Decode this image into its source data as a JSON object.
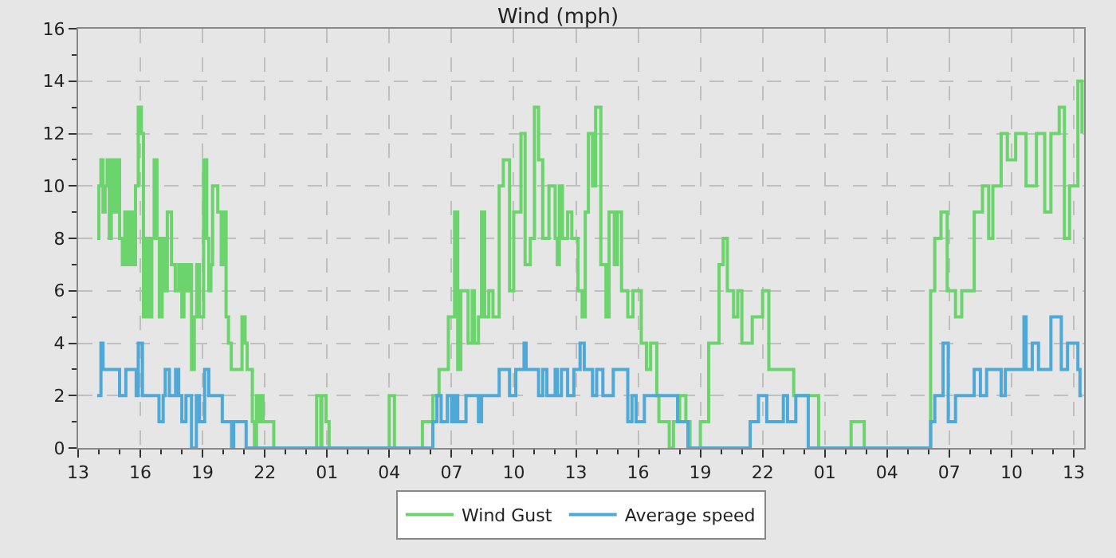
{
  "chart_data": {
    "type": "step",
    "title": "Wind (mph)",
    "xlim": [
      "--01-01T13:00",
      "--01-03T13:30"
    ],
    "xticks": [
      {
        "value": "--01-01T13:00",
        "label": "13"
      },
      {
        "value": "--01-01T14:00",
        "label": null
      },
      {
        "value": "--01-01T15:00",
        "label": null
      },
      {
        "value": "--01-01T16:00",
        "label": "16"
      },
      {
        "value": "--01-01T17:00",
        "label": null
      },
      {
        "value": "--01-01T18:00",
        "label": null
      },
      {
        "value": "--01-01T19:00",
        "label": "19"
      },
      {
        "value": "--01-01T20:00",
        "label": null
      },
      {
        "value": "--01-01T21:00",
        "label": null
      },
      {
        "value": "--01-01T22:00",
        "label": "22"
      },
      {
        "value": "--01-01T23:00",
        "label": null
      },
      {
        "value": "--01-02T00:00",
        "label": null
      },
      {
        "value": "--01-02T01:00",
        "label": "01"
      },
      {
        "value": "--01-02T02:00",
        "label": null
      },
      {
        "value": "--01-02T03:00",
        "label": null
      },
      {
        "value": "--01-02T04:00",
        "label": "04"
      },
      {
        "value": "--01-02T05:00",
        "label": null
      },
      {
        "value": "--01-02T06:00",
        "label": null
      },
      {
        "value": "--01-02T07:00",
        "label": "07"
      },
      {
        "value": "--01-02T08:00",
        "label": null
      },
      {
        "value": "--01-02T09:00",
        "label": null
      },
      {
        "value": "--01-02T10:00",
        "label": "10"
      },
      {
        "value": "--01-02T11:00",
        "label": null
      },
      {
        "value": "--01-02T12:00",
        "label": null
      },
      {
        "value": "--01-02T13:00",
        "label": "13"
      },
      {
        "value": "--01-02T14:00",
        "label": null
      },
      {
        "value": "--01-02T15:00",
        "label": null
      },
      {
        "value": "--01-02T16:00",
        "label": "16"
      },
      {
        "value": "--01-02T17:00",
        "label": null
      },
      {
        "value": "--01-02T18:00",
        "label": null
      },
      {
        "value": "--01-02T19:00",
        "label": "19"
      },
      {
        "value": "--01-02T20:00",
        "label": null
      },
      {
        "value": "--01-02T21:00",
        "label": null
      },
      {
        "value": "--01-02T22:00",
        "label": "22"
      },
      {
        "value": "--01-02T23:00",
        "label": null
      },
      {
        "value": "--01-03T00:00",
        "label": null
      },
      {
        "value": "--01-03T01:00",
        "label": "01"
      },
      {
        "value": "--01-03T02:00",
        "label": null
      },
      {
        "value": "--01-03T03:00",
        "label": null
      },
      {
        "value": "--01-03T04:00",
        "label": "04"
      },
      {
        "value": "--01-03T05:00",
        "label": null
      },
      {
        "value": "--01-03T06:00",
        "label": null
      },
      {
        "value": "--01-03T07:00",
        "label": "07"
      },
      {
        "value": "--01-03T08:00",
        "label": null
      },
      {
        "value": "--01-03T09:00",
        "label": null
      },
      {
        "value": "--01-03T10:00",
        "label": "10"
      },
      {
        "value": "--01-03T11:00",
        "label": null
      },
      {
        "value": "--01-03T12:00",
        "label": null
      },
      {
        "value": "--01-03T13:00",
        "label": "13"
      }
    ],
    "ylim": [
      0,
      16
    ],
    "yticks": [
      0,
      {
        "value": 1,
        "label": null
      },
      2,
      {
        "value": 3,
        "label": null
      },
      4,
      {
        "value": 5,
        "label": null
      },
      6,
      {
        "value": 7,
        "label": null
      },
      8,
      {
        "value": 9,
        "label": null
      },
      10,
      {
        "value": 11,
        "label": null
      },
      12,
      {
        "value": 13,
        "label": null
      },
      14,
      {
        "value": 15,
        "label": null
      },
      16
    ],
    "grid": true,
    "legend": "bottom",
    "marker": "none",
    "line_style": "solid",
    "series": [
      {
        "name": "Wind Gust",
        "color": "#6cd46c",
        "x": [
          "--01-01T13:55",
          "--01-01T14:00",
          "--01-01T14:06",
          "--01-01T14:12",
          "--01-01T14:18",
          "--01-01T14:24",
          "--01-01T14:30",
          "--01-01T14:36",
          "--01-01T14:45",
          "--01-01T14:54",
          "--01-01T15:00",
          "--01-01T15:08",
          "--01-01T15:15",
          "--01-01T15:24",
          "--01-01T15:30",
          "--01-01T15:39",
          "--01-01T15:46",
          "--01-01T15:54",
          "--01-01T16:03",
          "--01-01T16:09",
          "--01-01T16:18",
          "--01-01T16:24",
          "--01-01T16:33",
          "--01-01T16:40",
          "--01-01T16:48",
          "--01-01T16:55",
          "--01-01T17:03",
          "--01-01T17:12",
          "--01-01T17:18",
          "--01-01T17:30",
          "--01-01T17:41",
          "--01-01T17:51",
          "--01-01T18:00",
          "--01-01T18:06",
          "--01-01T18:12",
          "--01-01T18:21",
          "--01-01T18:28",
          "--01-01T18:36",
          "--01-01T18:43",
          "--01-01T18:51",
          "--01-01T19:03",
          "--01-01T19:12",
          "--01-01T19:18",
          "--01-01T19:24",
          "--01-01T19:29",
          "--01-01T19:44",
          "--01-01T19:54",
          "--01-01T20:00",
          "--01-01T20:08",
          "--01-01T20:15",
          "--01-01T20:23",
          "--01-01T20:54",
          "--01-01T21:03",
          "--01-01T21:09",
          "--01-01T21:24",
          "--01-01T21:30",
          "--01-01T21:36",
          "--01-01T21:40",
          "--01-01T21:48",
          "--01-01T21:55",
          "--01-01T22:26",
          "--01-02T00:30",
          "--01-02T00:42",
          "--01-02T00:45",
          "--01-02T00:57",
          "--01-02T01:06",
          "--01-02T04:00",
          "--01-02T04:15",
          "--01-02T05:36",
          "--01-02T06:06",
          "--01-02T06:24",
          "--01-02T06:51",
          "--01-02T07:09",
          "--01-02T07:18",
          "--01-02T07:27",
          "--01-02T07:48",
          "--01-02T08:00",
          "--01-02T08:06",
          "--01-02T08:18",
          "--01-02T08:27",
          "--01-02T08:36",
          "--01-02T08:48",
          "--01-02T09:00",
          "--01-02T09:18",
          "--01-02T09:30",
          "--01-02T09:48",
          "--01-02T10:00",
          "--01-02T10:21",
          "--01-02T10:33",
          "--01-02T10:48",
          "--01-02T11:00",
          "--01-02T11:12",
          "--01-02T11:24",
          "--01-02T11:42",
          "--01-02T12:00",
          "--01-02T12:06",
          "--01-02T12:12",
          "--01-02T12:21",
          "--01-02T12:36",
          "--01-02T12:48",
          "--01-02T13:06",
          "--01-02T13:18",
          "--01-02T13:27",
          "--01-02T13:36",
          "--01-02T13:48",
          "--01-02T13:57",
          "--01-02T14:12",
          "--01-02T14:27",
          "--01-02T14:36",
          "--01-02T14:51",
          "--01-02T15:00",
          "--01-02T15:12",
          "--01-02T15:30",
          "--01-02T15:45",
          "--01-02T16:09",
          "--01-02T16:24",
          "--01-02T16:36",
          "--01-02T16:54",
          "--01-02T17:00",
          "--01-02T17:30",
          "--01-02T17:42",
          "--01-02T18:00",
          "--01-02T18:18",
          "--01-02T18:30",
          "--01-02T19:00",
          "--01-02T19:24",
          "--01-02T19:54",
          "--01-02T20:06",
          "--01-02T20:18",
          "--01-02T20:36",
          "--01-02T20:48",
          "--01-02T21:00",
          "--01-02T21:30",
          "--01-02T22:00",
          "--01-02T22:18",
          "--01-02T23:30",
          "--01-03T00:42",
          "--01-03T02:16",
          "--01-03T02:54",
          "--01-03T06:06",
          "--01-03T06:18",
          "--01-03T06:36",
          "--01-03T06:54",
          "--01-03T07:18",
          "--01-03T07:36",
          "--01-03T08:12",
          "--01-03T08:36",
          "--01-03T08:54",
          "--01-03T09:06",
          "--01-03T09:30",
          "--01-03T09:48",
          "--01-03T10:12",
          "--01-03T10:42",
          "--01-03T11:12",
          "--01-03T11:36",
          "--01-03T11:54",
          "--01-03T12:18",
          "--01-03T12:33",
          "--01-03T12:48",
          "--01-03T13:12",
          "--01-03T13:24"
        ],
        "values": [
          8,
          10,
          11,
          9,
          10,
          11,
          8,
          11,
          9,
          11,
          8,
          7,
          9,
          7,
          9,
          7,
          10,
          13,
          12,
          5,
          8,
          5,
          8,
          11,
          8,
          5,
          8,
          6,
          9,
          7,
          6,
          7,
          5,
          7,
          6,
          7,
          3,
          5,
          7,
          5,
          11,
          8,
          6,
          7,
          10,
          9,
          7,
          9,
          5,
          4,
          3,
          5,
          4,
          3,
          1,
          0,
          2,
          1,
          2,
          1,
          0,
          2,
          0,
          2,
          1,
          0,
          2,
          0,
          1,
          2,
          3,
          5,
          9,
          3,
          6,
          4,
          6,
          4,
          5,
          9,
          5,
          6,
          5,
          10,
          11,
          6,
          9,
          12,
          7,
          8,
          13,
          11,
          8,
          10,
          8,
          7,
          10,
          8,
          9,
          8,
          6,
          5,
          9,
          12,
          10,
          13,
          7,
          5,
          9,
          7,
          9,
          6,
          5,
          6,
          4,
          3,
          4,
          2,
          1,
          0,
          1,
          2,
          1,
          0,
          1,
          4,
          7,
          8,
          6,
          5,
          6,
          4,
          5,
          6,
          3,
          2,
          0,
          1,
          0,
          6,
          8,
          9,
          6,
          5,
          6,
          9,
          10,
          8,
          10,
          12,
          11,
          12,
          10,
          12,
          9,
          12,
          13,
          8,
          10,
          14,
          12
        ]
      },
      {
        "name": "Average speed",
        "color": "#4ea8d8",
        "x": [
          "--01-01T13:55",
          "--01-01T14:06",
          "--01-01T14:12",
          "--01-01T15:00",
          "--01-01T15:18",
          "--01-01T15:48",
          "--01-01T15:54",
          "--01-01T16:06",
          "--01-01T16:54",
          "--01-01T17:06",
          "--01-01T17:12",
          "--01-01T17:24",
          "--01-01T17:42",
          "--01-01T17:51",
          "--01-01T18:00",
          "--01-01T18:12",
          "--01-01T18:28",
          "--01-01T18:42",
          "--01-01T18:51",
          "--01-01T19:06",
          "--01-01T19:18",
          "--01-01T19:57",
          "--01-01T20:24",
          "--01-01T20:30",
          "--01-01T21:06",
          "--01-02T06:06",
          "--01-02T06:18",
          "--01-02T06:30",
          "--01-02T06:48",
          "--01-02T07:00",
          "--01-02T07:09",
          "--01-02T07:18",
          "--01-02T07:42",
          "--01-02T08:18",
          "--01-02T08:27",
          "--01-02T09:18",
          "--01-02T09:48",
          "--01-02T10:06",
          "--01-02T10:30",
          "--01-02T10:36",
          "--01-02T11:12",
          "--01-02T11:24",
          "--01-02T11:36",
          "--01-02T12:00",
          "--01-02T12:06",
          "--01-02T12:18",
          "--01-02T12:36",
          "--01-02T12:54",
          "--01-02T13:12",
          "--01-02T13:24",
          "--01-02T13:48",
          "--01-02T14:00",
          "--01-02T14:18",
          "--01-02T14:48",
          "--01-02T15:30",
          "--01-02T15:42",
          "--01-02T15:54",
          "--01-02T16:18",
          "--01-02T17:54",
          "--01-02T18:24",
          "--01-02T21:24",
          "--01-02T21:48",
          "--01-02T22:12",
          "--01-02T23:00",
          "--01-02T23:12",
          "--01-02T23:36",
          "--01-03T00:12",
          "--01-03T06:06",
          "--01-03T06:18",
          "--01-03T06:42",
          "--01-03T06:57",
          "--01-03T07:18",
          "--01-03T08:12",
          "--01-03T08:30",
          "--01-03T08:48",
          "--01-03T09:30",
          "--01-03T09:42",
          "--01-03T10:36",
          "--01-03T10:42",
          "--01-03T11:00",
          "--01-03T11:18",
          "--01-03T11:54",
          "--01-03T12:24",
          "--01-03T12:42",
          "--01-03T13:12",
          "--01-03T13:18",
          "--01-03T13:24"
        ],
        "values": [
          2,
          4,
          3,
          2,
          3,
          2,
          4,
          2,
          1,
          2,
          3,
          2,
          3,
          2,
          1,
          2,
          0,
          2,
          1,
          3,
          2,
          1,
          0,
          1,
          0,
          1,
          2,
          1,
          2,
          1,
          2,
          1,
          2,
          1,
          2,
          3,
          2,
          3,
          4,
          3,
          2,
          3,
          2,
          3,
          2,
          3,
          2,
          3,
          4,
          3,
          2,
          3,
          2,
          3,
          1,
          2,
          1,
          2,
          1,
          0,
          1,
          2,
          1,
          2,
          1,
          2,
          0,
          1,
          2,
          4,
          1,
          2,
          3,
          2,
          3,
          2,
          3,
          5,
          3,
          4,
          3,
          5,
          3,
          4,
          3,
          2,
          2
        ]
      }
    ]
  }
}
